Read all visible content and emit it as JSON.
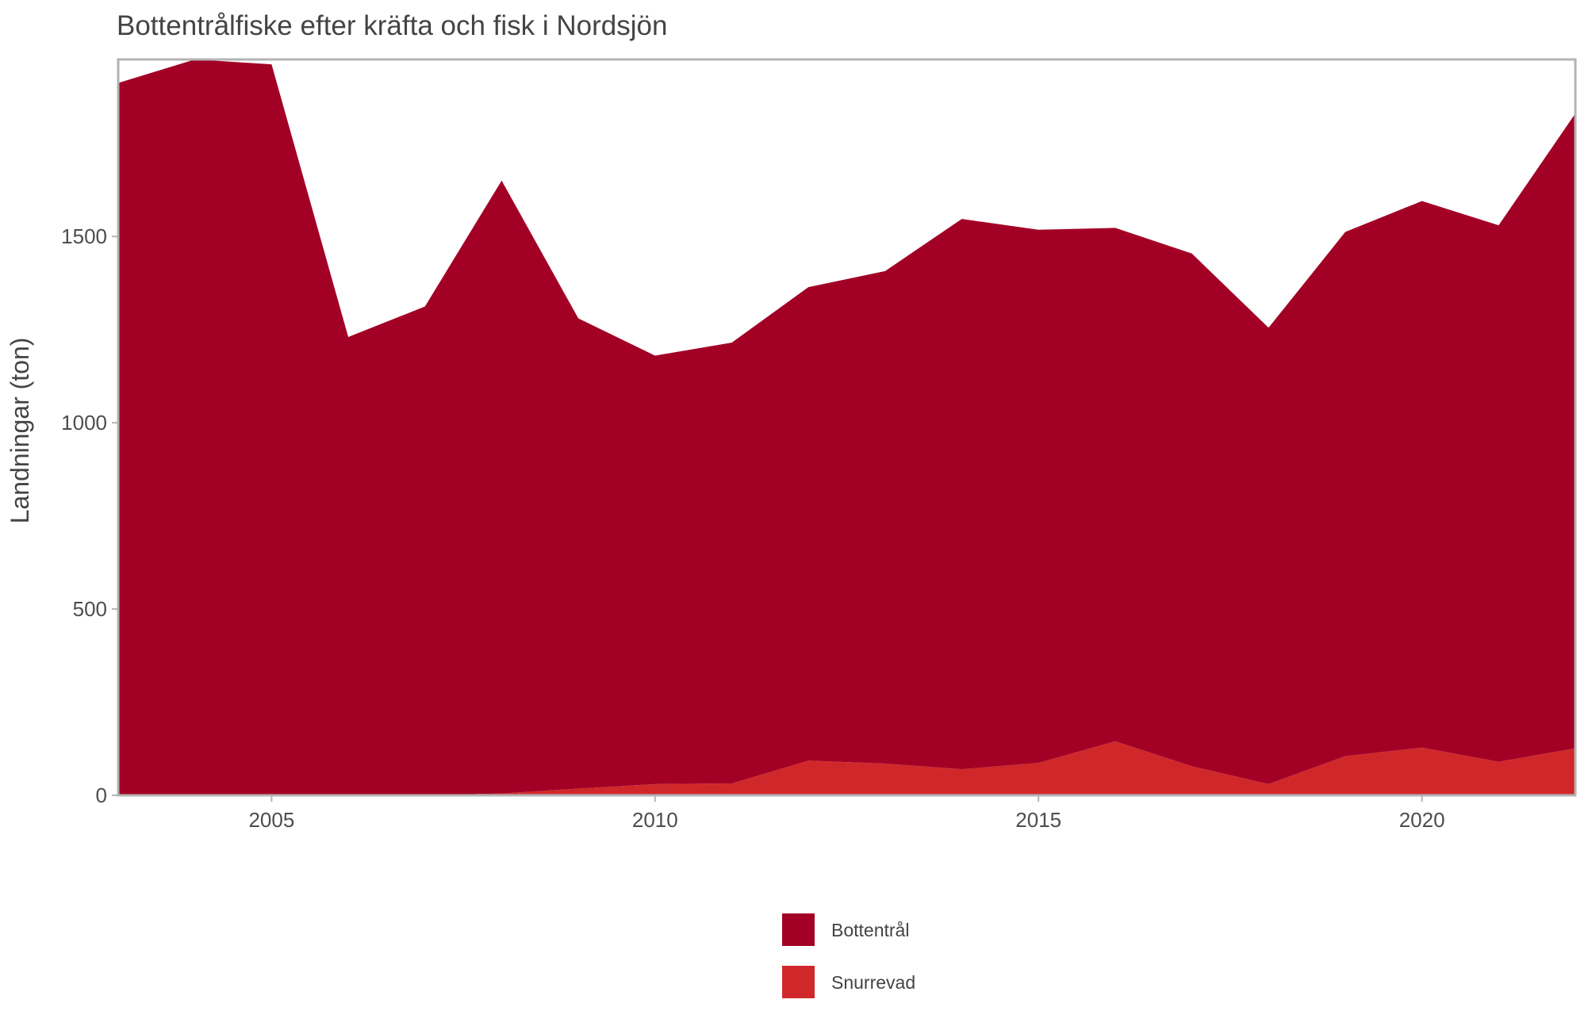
{
  "chart_data": {
    "type": "area",
    "stacked": true,
    "title": "Bottentrålfiske efter kräfta och fisk i Nordsjön",
    "xlabel": "",
    "ylabel": "Landningar (ton)",
    "x": [
      2003,
      2004,
      2005,
      2006,
      2007,
      2008,
      2009,
      2010,
      2011,
      2012,
      2013,
      2014,
      2015,
      2016,
      2017,
      2018,
      2019,
      2020,
      2021,
      2022
    ],
    "xlim": [
      2003,
      2022
    ],
    "ylim": [
      0,
      1975
    ],
    "x_ticks": [
      2005,
      2010,
      2015,
      2020
    ],
    "y_ticks": [
      0,
      500,
      1000,
      1500
    ],
    "grid": false,
    "legend_position": "bottom",
    "series": [
      {
        "name": "Snurrevad",
        "color": "#d0282a",
        "values": [
          0,
          0,
          0,
          0,
          0,
          5,
          18,
          30,
          32,
          93,
          85,
          70,
          87,
          145,
          78,
          30,
          105,
          128,
          90,
          126
        ]
      },
      {
        "name": "Bottentrål",
        "color": "#a30026",
        "values": [
          1912,
          1975,
          1962,
          1230,
          1312,
          1645,
          1262,
          1150,
          1183,
          1271,
          1322,
          1477,
          1431,
          1378,
          1376,
          1225,
          1407,
          1467,
          1440,
          1704
        ]
      }
    ],
    "legend_order": [
      "Bottentrål",
      "Snurrevad"
    ],
    "frame_color": "#b3b3b3"
  }
}
